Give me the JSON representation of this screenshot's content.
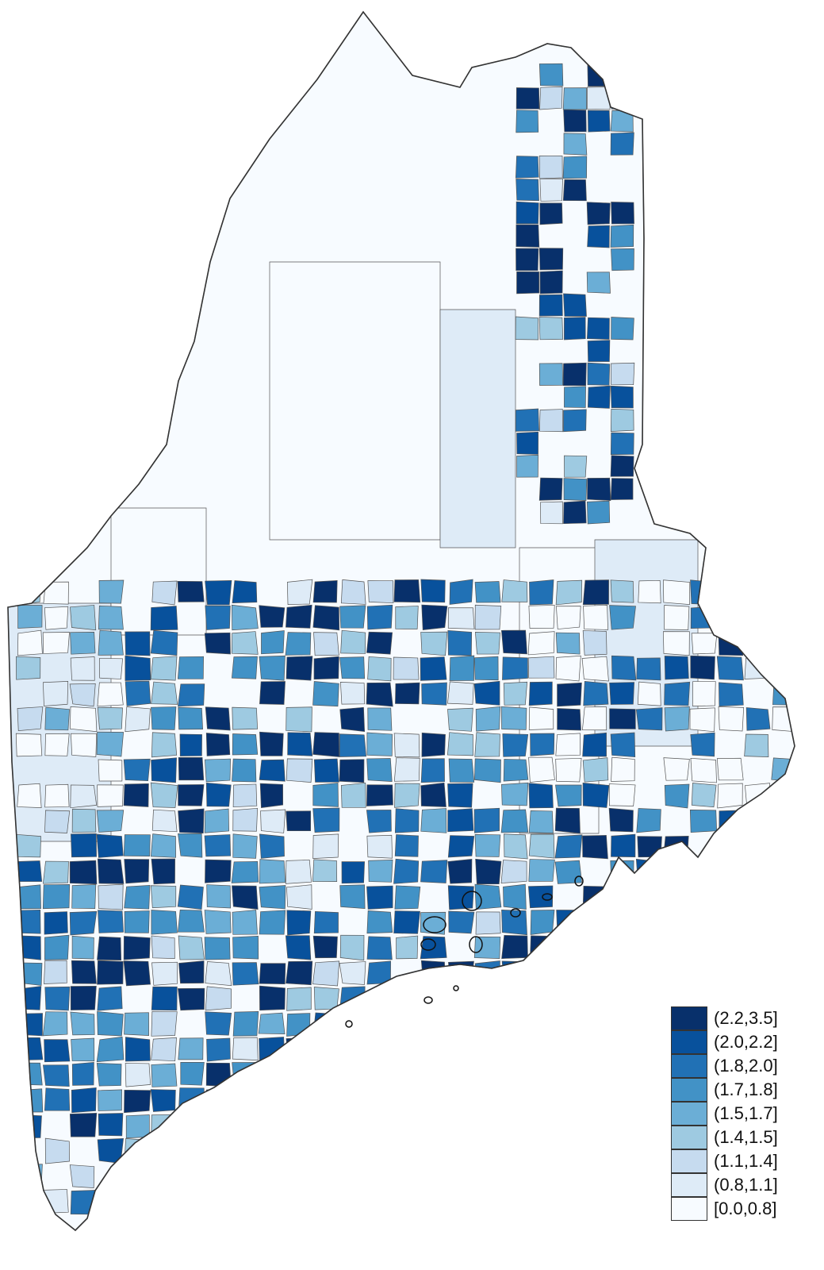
{
  "map": {
    "palette": [
      "#08306b",
      "#08519c",
      "#2171b5",
      "#4292c6",
      "#6baed6",
      "#9ecae1",
      "#c6dbef",
      "#deebf7",
      "#f7fbff"
    ],
    "outline_color": "#555555"
  },
  "legend": {
    "entries": [
      {
        "label": "(2.2,3.5]",
        "color": "#08306b"
      },
      {
        "label": "(2.0,2.2]",
        "color": "#08519c"
      },
      {
        "label": "(1.8,2.0]",
        "color": "#2171b5"
      },
      {
        "label": "(1.7,1.8]",
        "color": "#4292c6"
      },
      {
        "label": "(1.5,1.7]",
        "color": "#6baed6"
      },
      {
        "label": "(1.4,1.5]",
        "color": "#9ecae1"
      },
      {
        "label": "(1.1,1.4]",
        "color": "#c6dbef"
      },
      {
        "label": "(0.8,1.1]",
        "color": "#deebf7"
      },
      {
        "label": "[0.0,0.8]",
        "color": "#f7fbff"
      }
    ]
  }
}
